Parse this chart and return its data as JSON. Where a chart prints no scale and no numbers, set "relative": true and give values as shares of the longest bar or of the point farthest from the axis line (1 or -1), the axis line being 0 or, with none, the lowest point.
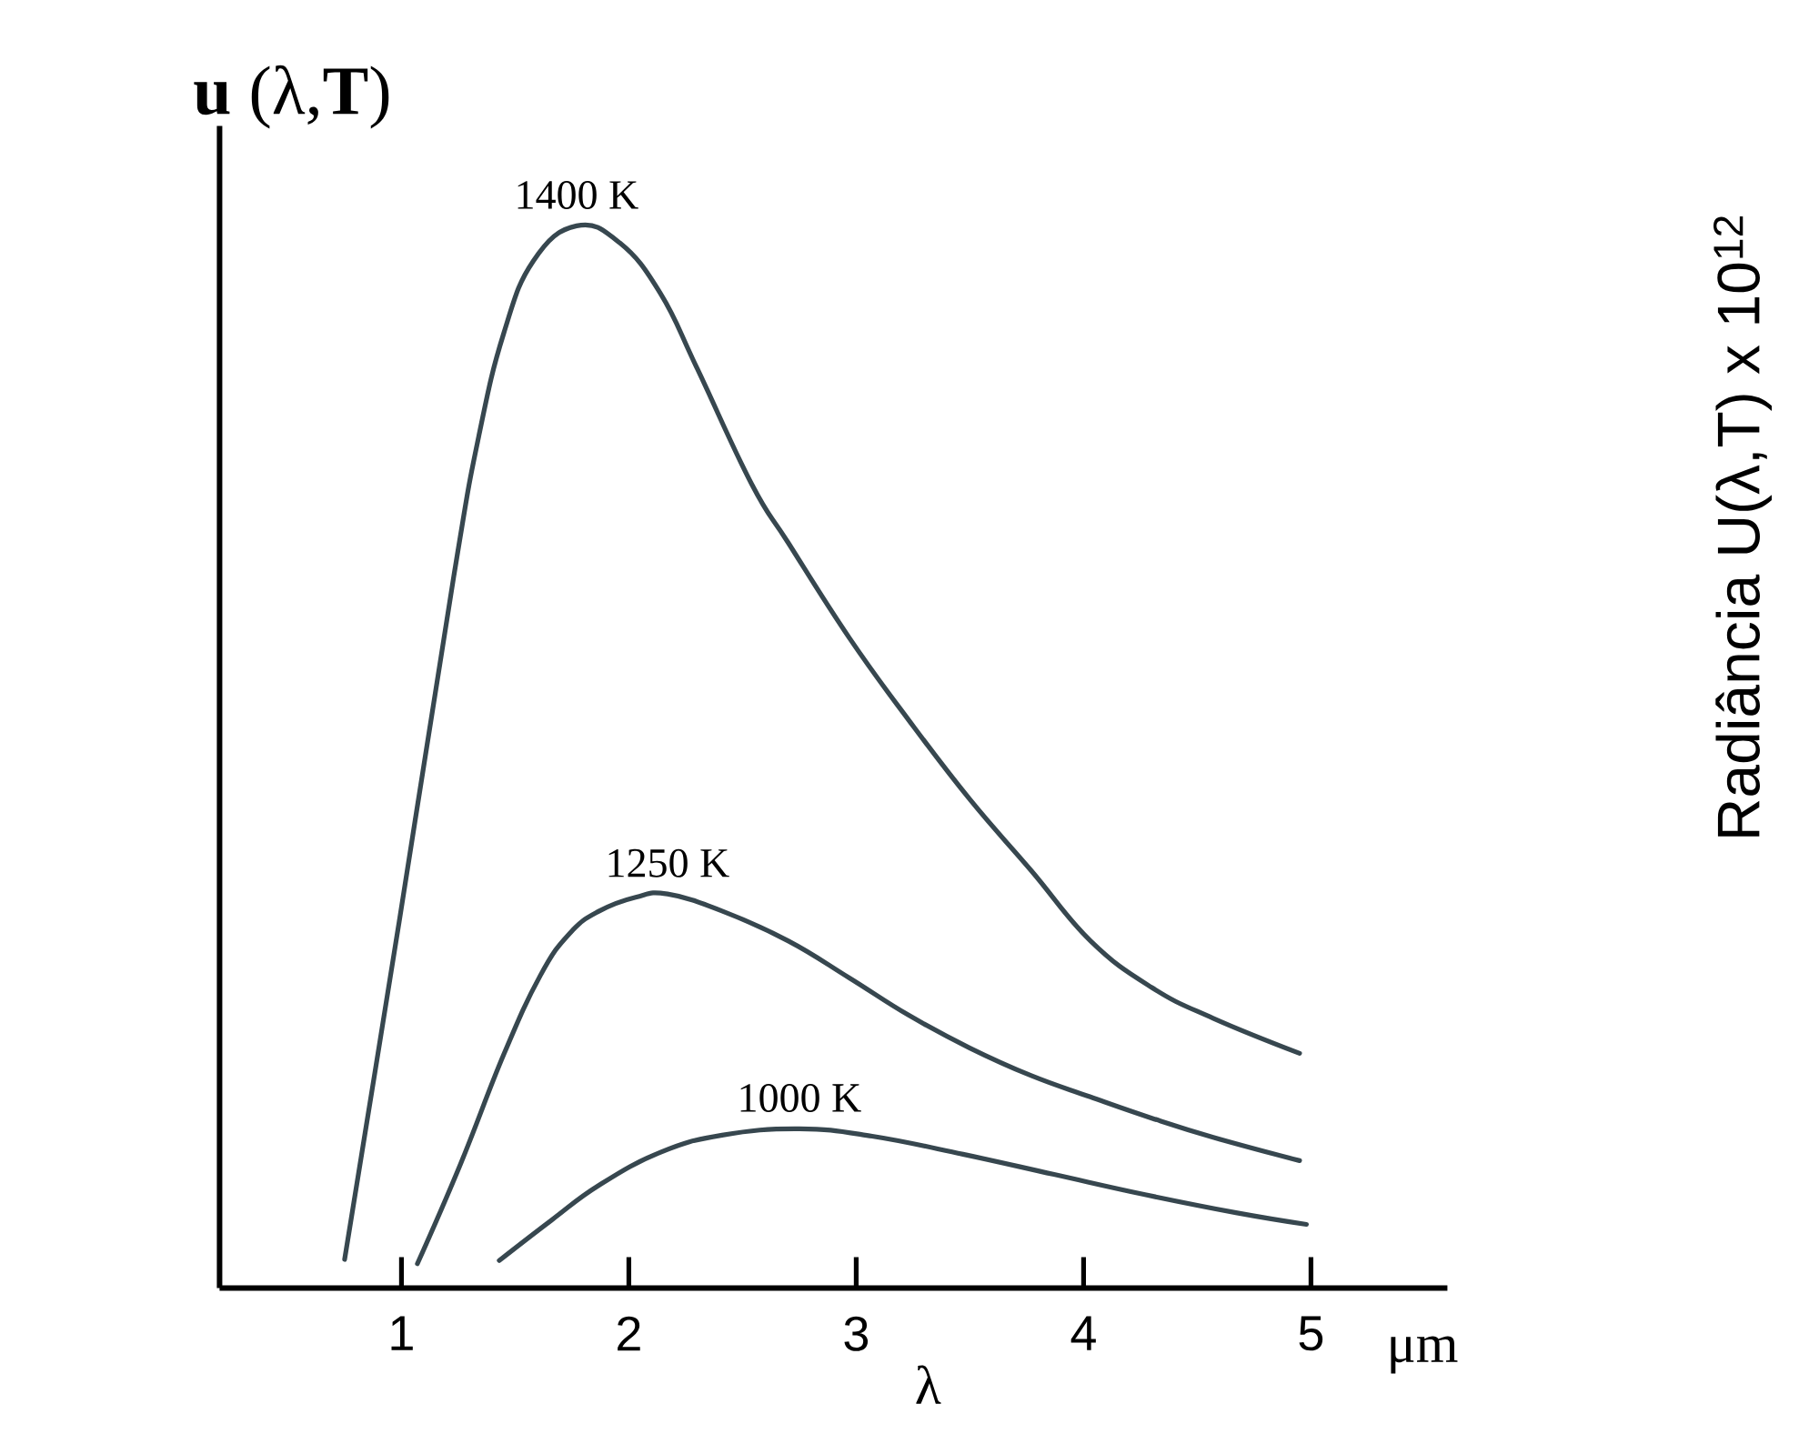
{
  "chart_data": {
    "type": "line",
    "relative": true,
    "ylabel": "**u** (λ,**T**)",
    "xlabel": "λ",
    "xlim": [
      0.2,
      5.6
    ],
    "xticks": [
      1,
      2,
      3,
      4,
      5
    ],
    "annotations": [
      "μm",
      "Radiância U(λ,T) x 10$^{12}$"
    ],
    "series": [
      {
        "name": "1400 K",
        "color": "#37474f",
        "x": [
          0.75,
          0.84,
          0.99,
          1.23,
          1.34,
          1.45,
          1.58,
          1.77,
          1.96,
          2.14,
          2.3,
          2.54,
          2.7,
          2.97,
          3.23,
          3.5,
          3.77,
          4.03,
          4.3,
          4.57,
          4.95
        ],
        "values": [
          0.027,
          0.146,
          0.345,
          0.67,
          0.802,
          0.899,
          0.967,
          1.0,
          0.984,
          0.936,
          0.866,
          0.757,
          0.702,
          0.612,
          0.535,
          0.46,
          0.393,
          0.327,
          0.283,
          0.254,
          0.221
        ]
      },
      {
        "name": "1250 K",
        "color": "#37474f",
        "x": [
          1.07,
          1.26,
          1.45,
          1.61,
          1.74,
          1.87,
          2.03,
          2.17,
          2.41,
          2.7,
          2.97,
          3.23,
          3.5,
          3.77,
          4.03,
          4.3,
          4.57,
          4.95
        ],
        "values": [
          0.023,
          0.117,
          0.22,
          0.294,
          0.334,
          0.355,
          0.368,
          0.371,
          0.355,
          0.327,
          0.292,
          0.257,
          0.226,
          0.2,
          0.18,
          0.16,
          0.142,
          0.12
        ]
      },
      {
        "name": "1000 K",
        "color": "#37474f",
        "x": [
          1.43,
          1.66,
          1.87,
          2.14,
          2.41,
          2.75,
          3.07,
          3.47,
          3.87,
          4.27,
          4.67,
          4.98
        ],
        "values": [
          0.026,
          0.064,
          0.097,
          0.128,
          0.144,
          0.15,
          0.143,
          0.126,
          0.107,
          0.088,
          0.071,
          0.06
        ]
      }
    ]
  }
}
